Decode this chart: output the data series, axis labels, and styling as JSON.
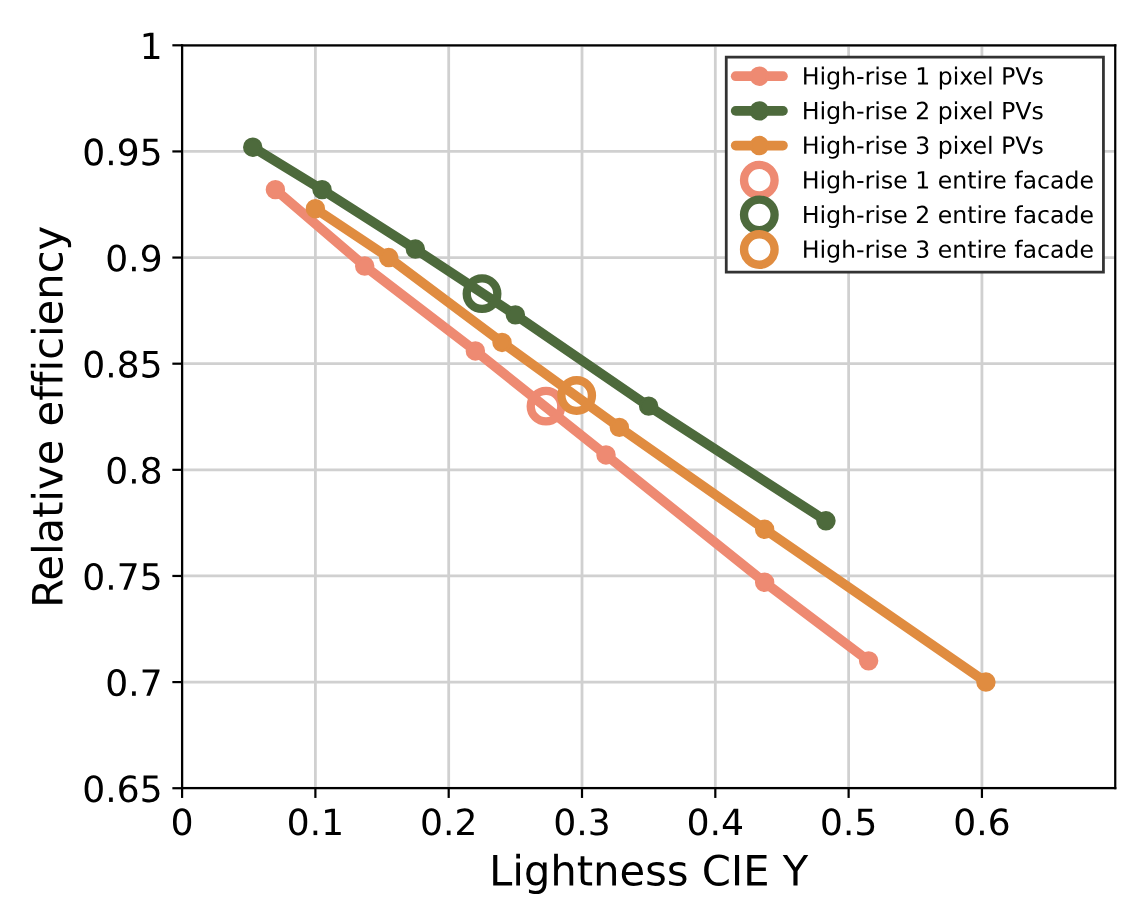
{
  "chart_data": {
    "type": "line",
    "xlabel": "Lightness CIE Y",
    "ylabel": "Relative efficiency",
    "xlim": [
      0,
      0.7
    ],
    "xticks": [
      0,
      0.1,
      0.2,
      0.3,
      0.4,
      0.5,
      0.6
    ],
    "ylim": [
      0.65,
      1
    ],
    "yticks": [
      0.65,
      0.7,
      0.75,
      0.8,
      0.85,
      0.9,
      0.95,
      1
    ],
    "grid": true,
    "legend": "top right",
    "marker": "circle",
    "series": [
      {
        "name": "High-rise 1 pixel PVs",
        "color": "#ee8a72",
        "x": [
          0.07,
          0.137,
          0.22,
          0.318,
          0.437,
          0.515
        ],
        "values": [
          0.932,
          0.896,
          0.856,
          0.807,
          0.747,
          0.71
        ]
      },
      {
        "name": "High-rise 2 pixel PVs",
        "color": "#4d6a3c",
        "x": [
          0.053,
          0.105,
          0.175,
          0.25,
          0.35,
          0.483
        ],
        "values": [
          0.952,
          0.932,
          0.904,
          0.873,
          0.83,
          0.776
        ]
      },
      {
        "name": "High-rise 3 pixel PVs",
        "color": "#e08c40",
        "x": [
          0.1,
          0.155,
          0.24,
          0.328,
          0.437,
          0.603
        ],
        "values": [
          0.923,
          0.9,
          0.86,
          0.82,
          0.772,
          0.7
        ]
      },
      {
        "name": "High-rise 1 entire facade",
        "type": "scatter",
        "color": "#ee8a72",
        "x": [
          0.273
        ],
        "values": [
          0.83
        ]
      },
      {
        "name": "High-rise 2 entire facade",
        "type": "scatter",
        "color": "#4d6a3c",
        "x": [
          0.225
        ],
        "values": [
          0.883
        ]
      },
      {
        "name": "High-rise 3 entire facade",
        "type": "scatter",
        "color": "#e08c40",
        "x": [
          0.296
        ],
        "values": [
          0.835
        ]
      }
    ]
  }
}
